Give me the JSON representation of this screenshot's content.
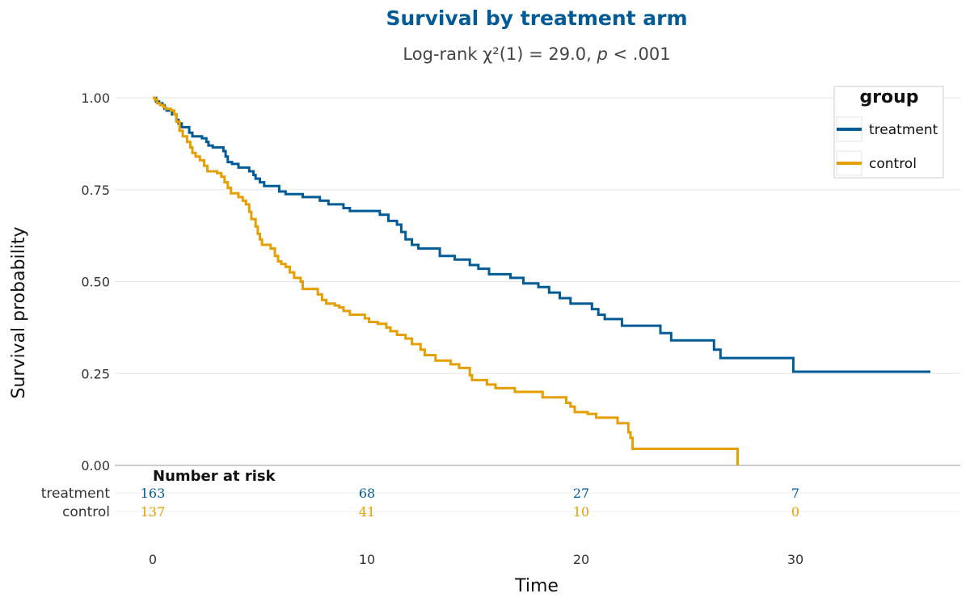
{
  "chart_data": {
    "type": "line",
    "subtype": "kaplan-meier",
    "title": "Survival by treatment arm",
    "subtitle_prefix": "Log-rank χ²(1) = 29.0, ",
    "subtitle_p": "p",
    "subtitle_suffix": " < .001",
    "xlabel": "Time",
    "ylabel": "Survival probability",
    "xlim": [
      0,
      38
    ],
    "ylim": [
      0,
      1
    ],
    "x_ticks": [
      0,
      10,
      20,
      30
    ],
    "y_ticks": [
      0,
      0.25,
      0.5,
      0.75,
      1
    ],
    "y_tick_labels": [
      "0.00",
      "0.25",
      "0.50",
      "0.75",
      "1.00"
    ],
    "grid": true,
    "legend": {
      "title": "group",
      "placement": "top-right",
      "entries": [
        "treatment",
        "control"
      ]
    },
    "series": [
      {
        "name": "treatment",
        "color": "#005B96",
        "steps": [
          [
            0,
            1.0
          ],
          [
            0.15,
            0.99
          ],
          [
            0.3,
            0.985
          ],
          [
            0.45,
            0.98
          ],
          [
            0.55,
            0.97
          ],
          [
            0.65,
            0.965
          ],
          [
            0.9,
            0.955
          ],
          [
            1.1,
            0.94
          ],
          [
            1.2,
            0.93
          ],
          [
            1.35,
            0.92
          ],
          [
            1.7,
            0.905
          ],
          [
            1.85,
            0.895
          ],
          [
            2.3,
            0.89
          ],
          [
            2.5,
            0.88
          ],
          [
            2.6,
            0.87
          ],
          [
            2.8,
            0.865
          ],
          [
            3.3,
            0.855
          ],
          [
            3.4,
            0.84
          ],
          [
            3.5,
            0.825
          ],
          [
            3.7,
            0.82
          ],
          [
            4.0,
            0.81
          ],
          [
            4.5,
            0.8
          ],
          [
            4.7,
            0.79
          ],
          [
            4.8,
            0.78
          ],
          [
            5.0,
            0.77
          ],
          [
            5.2,
            0.76
          ],
          [
            5.9,
            0.745
          ],
          [
            6.2,
            0.738
          ],
          [
            7.0,
            0.73
          ],
          [
            7.8,
            0.72
          ],
          [
            8.2,
            0.71
          ],
          [
            8.9,
            0.7
          ],
          [
            9.2,
            0.692
          ],
          [
            10.6,
            0.682
          ],
          [
            11.0,
            0.665
          ],
          [
            11.4,
            0.655
          ],
          [
            11.6,
            0.635
          ],
          [
            11.8,
            0.615
          ],
          [
            12.1,
            0.6
          ],
          [
            12.4,
            0.59
          ],
          [
            13.4,
            0.57
          ],
          [
            14.1,
            0.56
          ],
          [
            14.8,
            0.545
          ],
          [
            15.2,
            0.535
          ],
          [
            15.7,
            0.52
          ],
          [
            16.7,
            0.51
          ],
          [
            17.3,
            0.495
          ],
          [
            18.0,
            0.485
          ],
          [
            18.5,
            0.47
          ],
          [
            19.0,
            0.455
          ],
          [
            19.5,
            0.44
          ],
          [
            20.5,
            0.425
          ],
          [
            20.8,
            0.41
          ],
          [
            21.1,
            0.398
          ],
          [
            21.9,
            0.38
          ],
          [
            23.7,
            0.36
          ],
          [
            24.2,
            0.34
          ],
          [
            26.2,
            0.315
          ],
          [
            26.5,
            0.292
          ],
          [
            29.9,
            0.255
          ],
          [
            36.3,
            0.255
          ]
        ]
      },
      {
        "name": "control",
        "color": "#E69F00",
        "steps": [
          [
            0,
            1.0
          ],
          [
            0.1,
            0.995
          ],
          [
            0.2,
            0.985
          ],
          [
            0.35,
            0.98
          ],
          [
            0.5,
            0.975
          ],
          [
            0.6,
            0.97
          ],
          [
            0.85,
            0.965
          ],
          [
            1.0,
            0.955
          ],
          [
            1.1,
            0.935
          ],
          [
            1.25,
            0.91
          ],
          [
            1.4,
            0.895
          ],
          [
            1.6,
            0.88
          ],
          [
            1.75,
            0.865
          ],
          [
            1.85,
            0.85
          ],
          [
            2.0,
            0.84
          ],
          [
            2.2,
            0.83
          ],
          [
            2.4,
            0.815
          ],
          [
            2.55,
            0.8
          ],
          [
            3.0,
            0.795
          ],
          [
            3.2,
            0.785
          ],
          [
            3.35,
            0.77
          ],
          [
            3.5,
            0.755
          ],
          [
            3.65,
            0.74
          ],
          [
            4.0,
            0.73
          ],
          [
            4.2,
            0.72
          ],
          [
            4.35,
            0.71
          ],
          [
            4.5,
            0.69
          ],
          [
            4.6,
            0.67
          ],
          [
            4.8,
            0.65
          ],
          [
            4.9,
            0.63
          ],
          [
            5.0,
            0.615
          ],
          [
            5.1,
            0.6
          ],
          [
            5.5,
            0.59
          ],
          [
            5.7,
            0.57
          ],
          [
            5.85,
            0.555
          ],
          [
            6.0,
            0.548
          ],
          [
            6.2,
            0.54
          ],
          [
            6.4,
            0.525
          ],
          [
            6.6,
            0.51
          ],
          [
            6.9,
            0.5
          ],
          [
            7.0,
            0.48
          ],
          [
            7.7,
            0.465
          ],
          [
            7.9,
            0.45
          ],
          [
            8.1,
            0.44
          ],
          [
            8.5,
            0.435
          ],
          [
            8.7,
            0.43
          ],
          [
            8.9,
            0.42
          ],
          [
            9.2,
            0.41
          ],
          [
            9.9,
            0.4
          ],
          [
            10.1,
            0.39
          ],
          [
            10.5,
            0.385
          ],
          [
            10.9,
            0.375
          ],
          [
            11.1,
            0.365
          ],
          [
            11.4,
            0.355
          ],
          [
            11.8,
            0.345
          ],
          [
            12.1,
            0.33
          ],
          [
            12.5,
            0.315
          ],
          [
            12.7,
            0.3
          ],
          [
            13.2,
            0.285
          ],
          [
            13.9,
            0.275
          ],
          [
            14.3,
            0.265
          ],
          [
            14.8,
            0.245
          ],
          [
            14.9,
            0.232
          ],
          [
            15.6,
            0.22
          ],
          [
            16.0,
            0.21
          ],
          [
            16.9,
            0.2
          ],
          [
            18.2,
            0.185
          ],
          [
            19.3,
            0.17
          ],
          [
            19.5,
            0.16
          ],
          [
            19.7,
            0.145
          ],
          [
            20.3,
            0.14
          ],
          [
            20.7,
            0.13
          ],
          [
            21.7,
            0.115
          ],
          [
            22.2,
            0.09
          ],
          [
            22.3,
            0.075
          ],
          [
            22.4,
            0.045
          ],
          [
            27.3,
            0.0
          ]
        ]
      }
    ],
    "risk_table": {
      "title": "Number at risk",
      "times": [
        0,
        10,
        20,
        30
      ],
      "rows": [
        {
          "group": "treatment",
          "color": "#005B96",
          "values": [
            "163",
            "68",
            "27",
            "7"
          ]
        },
        {
          "group": "control",
          "color": "#E69F00",
          "values": [
            "137",
            "41",
            "10",
            "0"
          ]
        }
      ]
    }
  }
}
